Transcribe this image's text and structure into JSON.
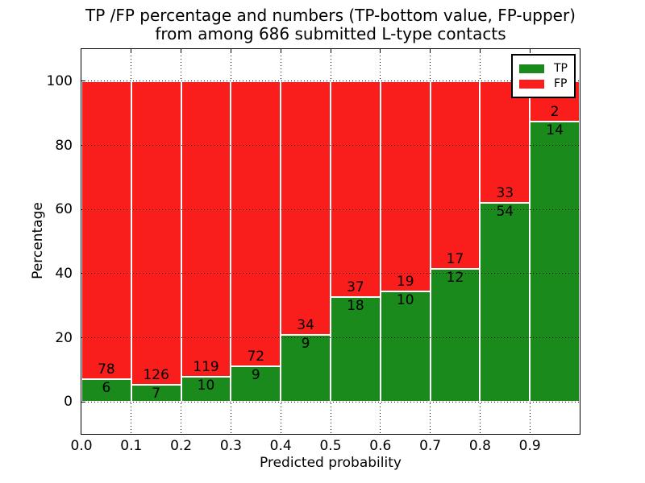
{
  "title": {
    "line1": "TP /FP percentage and numbers (TP-bottom value, FP-upper)",
    "line2": "from among 686 submitted L-type contacts"
  },
  "axes": {
    "xlabel": "Predicted probability",
    "ylabel": "Percentage",
    "xticks": [
      "0.0",
      "0.1",
      "0.2",
      "0.3",
      "0.4",
      "0.5",
      "0.6",
      "0.7",
      "0.8",
      "0.9"
    ],
    "yticks": [
      0,
      20,
      40,
      60,
      80,
      100
    ]
  },
  "legend": {
    "items": [
      {
        "label": "TP",
        "color": "#1a8a1d"
      },
      {
        "label": "FP",
        "color": "#f91d1b"
      }
    ],
    "position": "upper right"
  },
  "colors": {
    "tp_green": "#1a8a1d",
    "fp_red": "#f91d1b",
    "bar_edge": "#ffffff",
    "grid": "#000000",
    "background": "#ffffff"
  },
  "chart_data": {
    "type": "bar",
    "stacked": true,
    "normalized": "each bar stacks to 100%",
    "title": "TP /FP percentage and numbers (TP-bottom value, FP-upper) from among 686 submitted L-type contacts",
    "xlabel": "Predicted probability",
    "ylabel": "Percentage",
    "total_contacts": 686,
    "categories": [
      "0.0-0.1",
      "0.1-0.2",
      "0.2-0.3",
      "0.3-0.4",
      "0.4-0.5",
      "0.5-0.6",
      "0.6-0.7",
      "0.7-0.8",
      "0.8-0.9",
      "0.9-1.0"
    ],
    "bin_starts": [
      0.0,
      0.1,
      0.2,
      0.3,
      0.4,
      0.5,
      0.6,
      0.7,
      0.8,
      0.9
    ],
    "bin_width": 0.1,
    "series": [
      {
        "name": "TP",
        "color": "#1a8a1d",
        "values": [
          6,
          7,
          10,
          9,
          9,
          18,
          10,
          12,
          54,
          14
        ],
        "percent": [
          7.1,
          5.3,
          7.8,
          11.1,
          20.9,
          32.7,
          34.5,
          41.4,
          62.1,
          87.5
        ]
      },
      {
        "name": "FP",
        "color": "#f91d1b",
        "values": [
          78,
          126,
          119,
          72,
          34,
          37,
          19,
          17,
          33,
          2
        ],
        "percent": [
          92.9,
          94.7,
          92.2,
          88.9,
          79.1,
          67.3,
          65.5,
          58.6,
          37.9,
          12.5
        ]
      }
    ],
    "xlim": [
      0.0,
      1.0
    ],
    "ylim": [
      -10,
      110
    ],
    "yticks": [
      0,
      20,
      40,
      60,
      80,
      100
    ],
    "xticks": [
      0.0,
      0.1,
      0.2,
      0.3,
      0.4,
      0.5,
      0.6,
      0.7,
      0.8,
      0.9
    ],
    "grid": true,
    "grid_style": "dotted",
    "legend_position": "upper right"
  }
}
